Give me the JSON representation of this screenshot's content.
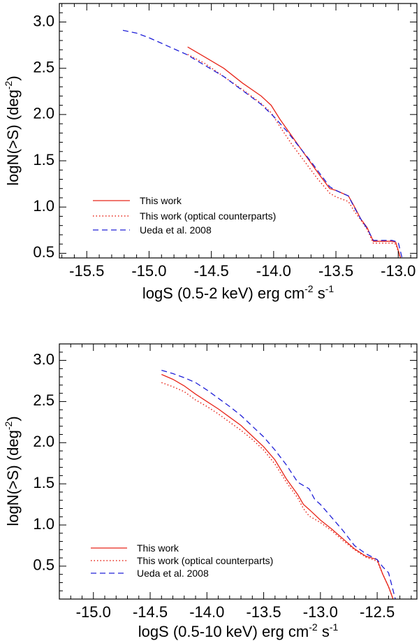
{
  "chart_data": [
    {
      "type": "line",
      "title": "",
      "xlabel": {
        "prefix": "logS (0.5-2 keV) erg cm",
        "sup1": "-2",
        "mid": " s",
        "sup2": "-1"
      },
      "ylabel": {
        "prefix": "logN(>S) (deg",
        "sup": "-2",
        "suffix": ")"
      },
      "xlim": [
        -15.72,
        -12.85
      ],
      "ylim": [
        0.45,
        3.2
      ],
      "xticks": [
        -15.5,
        -15.0,
        -14.5,
        -14.0,
        -13.5,
        -13.0
      ],
      "xtick_labels": [
        "-15.5",
        "-15.0",
        "-14.5",
        "-14.0",
        "-13.5",
        "-13.0"
      ],
      "yticks": [
        0.5,
        1.0,
        1.5,
        2.0,
        2.5,
        3.0
      ],
      "ytick_labels": [
        "0.5",
        "1.0",
        "1.5",
        "2.0",
        "2.5",
        "3.0"
      ],
      "legend_position": "bottom-left",
      "series": [
        {
          "name": "This work",
          "style": "solid",
          "color": "#e8261a",
          "x": [
            -14.69,
            -14.55,
            -14.4,
            -14.25,
            -14.1,
            -14.02,
            -13.95,
            -13.85,
            -13.75,
            -13.65,
            -13.55,
            -13.5,
            -13.4,
            -13.35,
            -13.3,
            -13.25,
            -13.2,
            -13.15,
            -13.05,
            -13.02,
            -12.97
          ],
          "y": [
            2.73,
            2.62,
            2.5,
            2.34,
            2.2,
            2.1,
            1.95,
            1.76,
            1.57,
            1.38,
            1.2,
            1.18,
            1.12,
            1.0,
            0.87,
            0.78,
            0.63,
            0.63,
            0.63,
            0.62,
            0.4
          ]
        },
        {
          "name": "This work (optical counterparts)",
          "style": "dotted",
          "color": "#e8261a",
          "x": [
            -14.69,
            -14.55,
            -14.4,
            -14.25,
            -14.1,
            -14.02,
            -13.95,
            -13.85,
            -13.75,
            -13.65,
            -13.55,
            -13.5,
            -13.4,
            -13.35,
            -13.3,
            -13.25,
            -13.2,
            -13.15,
            -13.05,
            -13.02,
            -12.97
          ],
          "y": [
            2.65,
            2.55,
            2.41,
            2.27,
            2.12,
            2.02,
            1.87,
            1.67,
            1.49,
            1.31,
            1.15,
            1.11,
            1.06,
            0.95,
            0.86,
            0.76,
            0.61,
            0.61,
            0.61,
            0.6,
            0.4
          ]
        },
        {
          "name": "Ueda et al. 2008",
          "style": "dashed",
          "color": "#2020d8",
          "x": [
            -15.21,
            -15.1,
            -15.0,
            -14.9,
            -14.8,
            -14.7,
            -14.6,
            -14.5,
            -14.4,
            -14.3,
            -14.2,
            -14.1,
            -14.0,
            -13.9,
            -13.8,
            -13.7,
            -13.6,
            -13.55,
            -13.5,
            -13.4,
            -13.35,
            -13.3,
            -13.25,
            -13.2,
            -13.15,
            -13.1,
            -13.05,
            -13.0,
            -12.96
          ],
          "y": [
            2.91,
            2.88,
            2.83,
            2.77,
            2.71,
            2.65,
            2.57,
            2.49,
            2.41,
            2.31,
            2.21,
            2.11,
            1.98,
            1.83,
            1.66,
            1.49,
            1.31,
            1.22,
            1.18,
            1.12,
            0.99,
            0.87,
            0.77,
            0.64,
            0.64,
            0.64,
            0.64,
            0.62,
            0.4
          ]
        }
      ]
    },
    {
      "type": "line",
      "title": "",
      "xlabel": {
        "prefix": "logS (0.5-10 keV) erg cm",
        "sup1": "-2",
        "mid": " s",
        "sup2": "-1"
      },
      "ylabel": {
        "prefix": "logN(>S) (deg",
        "sup": "-2",
        "suffix": ")"
      },
      "xlim": [
        -15.3,
        -12.15
      ],
      "ylim": [
        0.1,
        3.2
      ],
      "xticks": [
        -15.0,
        -14.5,
        -14.0,
        -13.5,
        -13.0,
        -12.5
      ],
      "xtick_labels": [
        "-15.0",
        "-14.5",
        "-14.0",
        "-13.5",
        "-13.0",
        "-12.5"
      ],
      "yticks": [
        0.5,
        1.0,
        1.5,
        2.0,
        2.5,
        3.0
      ],
      "ytick_labels": [
        "0.5",
        "1.0",
        "1.5",
        "2.0",
        "2.5",
        "3.0"
      ],
      "legend_position": "bottom-left",
      "series": [
        {
          "name": "This work",
          "style": "solid",
          "color": "#e8261a",
          "x": [
            -14.4,
            -14.3,
            -14.2,
            -14.1,
            -14.0,
            -13.9,
            -13.8,
            -13.7,
            -13.6,
            -13.5,
            -13.4,
            -13.3,
            -13.2,
            -13.15,
            -13.1,
            -13.0,
            -12.9,
            -12.8,
            -12.7,
            -12.6,
            -12.5,
            -12.45,
            -12.4,
            -12.36
          ],
          "y": [
            2.83,
            2.77,
            2.69,
            2.59,
            2.5,
            2.41,
            2.31,
            2.21,
            2.08,
            1.95,
            1.79,
            1.56,
            1.37,
            1.25,
            1.19,
            1.06,
            0.95,
            0.83,
            0.71,
            0.62,
            0.58,
            0.4,
            0.25,
            0.1
          ]
        },
        {
          "name": "This work (optical counterparts)",
          "style": "dotted",
          "color": "#e8261a",
          "x": [
            -14.4,
            -14.3,
            -14.2,
            -14.1,
            -14.0,
            -13.9,
            -13.8,
            -13.7,
            -13.6,
            -13.5,
            -13.4,
            -13.3,
            -13.2,
            -13.15,
            -13.1,
            -13.0,
            -12.9,
            -12.8,
            -12.7,
            -12.6,
            -12.5,
            -12.45,
            -12.4,
            -12.36
          ],
          "y": [
            2.73,
            2.68,
            2.62,
            2.52,
            2.44,
            2.35,
            2.25,
            2.15,
            2.04,
            1.91,
            1.74,
            1.52,
            1.33,
            1.2,
            1.11,
            1.03,
            0.93,
            0.81,
            0.7,
            0.61,
            0.56,
            0.4,
            0.25,
            0.1
          ]
        },
        {
          "name": "Ueda et al. 2008",
          "style": "dashed",
          "color": "#2020d8",
          "x": [
            -14.4,
            -14.3,
            -14.2,
            -14.1,
            -14.0,
            -13.9,
            -13.8,
            -13.7,
            -13.6,
            -13.5,
            -13.4,
            -13.3,
            -13.2,
            -13.1,
            -13.05,
            -13.0,
            -12.9,
            -12.8,
            -12.7,
            -12.6,
            -12.5,
            -12.45,
            -12.4,
            -12.34
          ],
          "y": [
            2.88,
            2.84,
            2.79,
            2.73,
            2.64,
            2.54,
            2.44,
            2.33,
            2.2,
            2.07,
            1.91,
            1.73,
            1.52,
            1.44,
            1.31,
            1.25,
            1.09,
            0.93,
            0.75,
            0.65,
            0.58,
            0.49,
            0.42,
            0.1
          ]
        }
      ]
    }
  ]
}
